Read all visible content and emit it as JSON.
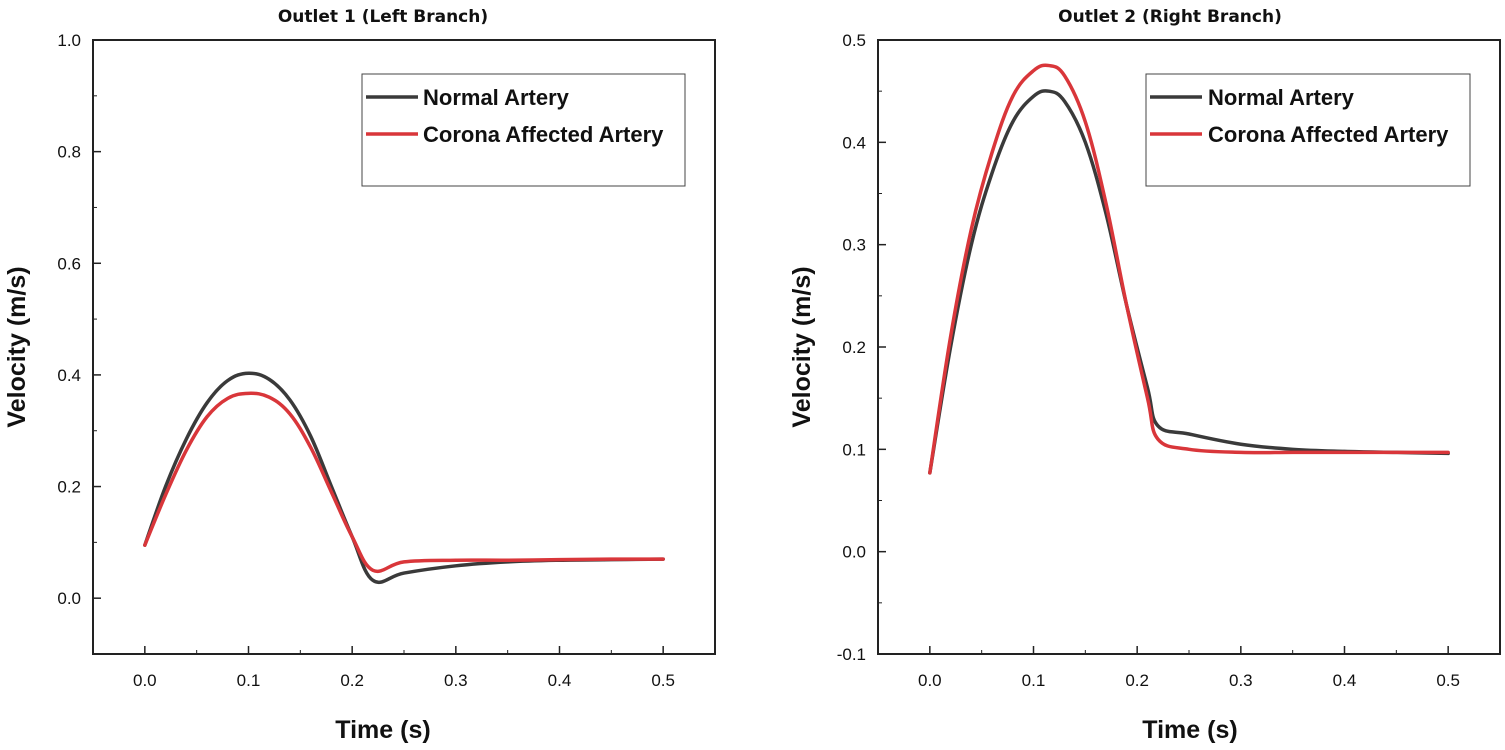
{
  "colors": {
    "normal": "#3a3a3a",
    "corona": "#d9363a",
    "axis": "#222222"
  },
  "chart_data": [
    {
      "type": "line",
      "title": "Outlet 1 (Left Branch)",
      "xlabel": "Time (s)",
      "ylabel": "Velocity (m/s)",
      "xlim": [
        -0.05,
        0.55
      ],
      "ylim": [
        -0.1,
        1.0
      ],
      "xticks": [
        0.0,
        0.1,
        0.2,
        0.3,
        0.4,
        0.5
      ],
      "xtick_labels": [
        "0.0",
        "0.1",
        "0.2",
        "0.3",
        "0.4",
        "0.5"
      ],
      "yticks": [
        0.0,
        0.2,
        0.4,
        0.6,
        0.8,
        1.0
      ],
      "ytick_labels": [
        "0.0",
        "0.2",
        "0.4",
        "0.6",
        "0.8",
        "1.0"
      ],
      "legend_position": "top-right",
      "series": [
        {
          "name": "Normal Artery",
          "color_key": "normal",
          "x": [
            0.0,
            0.02,
            0.04,
            0.06,
            0.08,
            0.1,
            0.12,
            0.14,
            0.16,
            0.18,
            0.2,
            0.22,
            0.25,
            0.3,
            0.35,
            0.4,
            0.45,
            0.5
          ],
          "y": [
            0.095,
            0.2,
            0.285,
            0.35,
            0.39,
            0.403,
            0.392,
            0.355,
            0.29,
            0.2,
            0.11,
            0.032,
            0.045,
            0.058,
            0.065,
            0.068,
            0.069,
            0.07
          ]
        },
        {
          "name": "Corona Affected Artery",
          "color_key": "corona",
          "x": [
            0.0,
            0.02,
            0.04,
            0.06,
            0.08,
            0.1,
            0.12,
            0.14,
            0.16,
            0.18,
            0.2,
            0.22,
            0.25,
            0.3,
            0.35,
            0.4,
            0.45,
            0.5
          ],
          "y": [
            0.095,
            0.185,
            0.265,
            0.325,
            0.358,
            0.367,
            0.36,
            0.33,
            0.27,
            0.19,
            0.11,
            0.05,
            0.065,
            0.068,
            0.068,
            0.069,
            0.07,
            0.07
          ]
        }
      ]
    },
    {
      "type": "line",
      "title": "Outlet 2 (Right Branch)",
      "xlabel": "Time (s)",
      "ylabel": "Velocity (m/s)",
      "xlim": [
        -0.05,
        0.55
      ],
      "ylim": [
        -0.1,
        0.5
      ],
      "xticks": [
        0.0,
        0.1,
        0.2,
        0.3,
        0.4,
        0.5
      ],
      "xtick_labels": [
        "0.0",
        "0.1",
        "0.2",
        "0.3",
        "0.4",
        "0.5"
      ],
      "yticks": [
        -0.1,
        0.0,
        0.1,
        0.2,
        0.3,
        0.4,
        0.5
      ],
      "ytick_labels": [
        "-0.1",
        "0.0",
        "0.1",
        "0.2",
        "0.3",
        "0.4",
        "0.5"
      ],
      "legend_position": "top-right",
      "series": [
        {
          "name": "Normal Artery",
          "color_key": "normal",
          "x": [
            0.0,
            0.02,
            0.04,
            0.06,
            0.08,
            0.1,
            0.115,
            0.13,
            0.15,
            0.17,
            0.19,
            0.21,
            0.22,
            0.25,
            0.3,
            0.35,
            0.4,
            0.45,
            0.5
          ],
          "y": [
            0.077,
            0.2,
            0.3,
            0.37,
            0.42,
            0.445,
            0.45,
            0.44,
            0.4,
            0.33,
            0.24,
            0.16,
            0.123,
            0.115,
            0.105,
            0.1,
            0.098,
            0.097,
            0.096
          ]
        },
        {
          "name": "Corona Affected Artery",
          "color_key": "corona",
          "x": [
            0.0,
            0.02,
            0.04,
            0.06,
            0.08,
            0.1,
            0.115,
            0.13,
            0.15,
            0.17,
            0.19,
            0.21,
            0.22,
            0.25,
            0.3,
            0.35,
            0.4,
            0.45,
            0.5
          ],
          "y": [
            0.077,
            0.21,
            0.315,
            0.39,
            0.445,
            0.47,
            0.475,
            0.465,
            0.42,
            0.34,
            0.24,
            0.15,
            0.11,
            0.1,
            0.097,
            0.097,
            0.097,
            0.097,
            0.097
          ]
        }
      ]
    }
  ]
}
